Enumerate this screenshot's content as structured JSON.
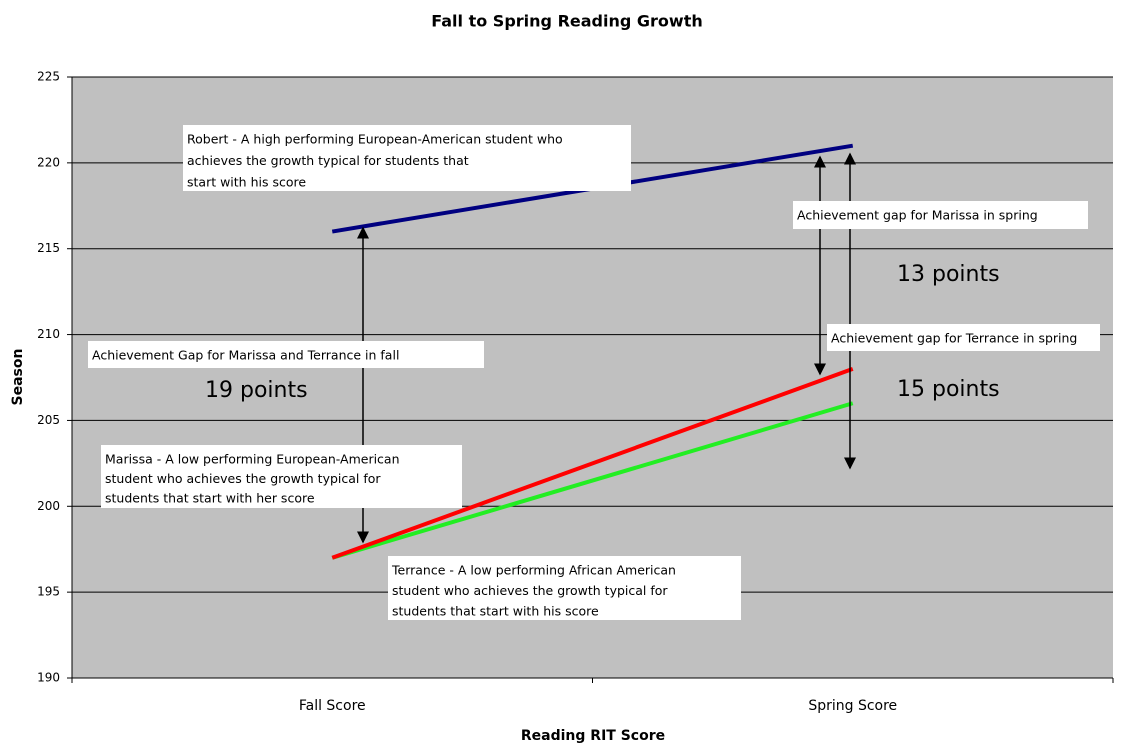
{
  "chart_data": {
    "type": "line",
    "title": "Fall to Spring Reading Growth",
    "x_label": "Reading RIT Score",
    "y_label": "Season",
    "categories": [
      "Fall Score",
      "Spring Score"
    ],
    "series": [
      {
        "color": "#000080",
        "values": [
          216,
          221
        ]
      },
      {
        "color": "#22ee22",
        "values": [
          197,
          206
        ]
      },
      {
        "color": "#ff0000",
        "values": [
          197,
          208
        ]
      }
    ],
    "ylim": [
      190,
      225
    ],
    "yticks": [
      190,
      195,
      200,
      205,
      210,
      215,
      220,
      225
    ],
    "grid": true,
    "annotations": [
      [
        "Robert - A high performing European-American student who",
        "achieves the growth typical for students that",
        "start with his score"
      ],
      [
        "Achievement Gap for Marissa and Terrance in fall"
      ],
      [
        "19 points"
      ],
      [
        "Marissa - A low performing European-American",
        "student who achieves the growth typical for",
        "students that start with her score"
      ],
      [
        "Terrance - A low performing African American",
        "student who achieves the growth typical for",
        "students that start with his score"
      ],
      [
        "Achievement gap for Marissa in spring"
      ],
      [
        "13 points"
      ],
      [
        "Achievement gap for Terrance in spring"
      ],
      [
        "15 points"
      ]
    ]
  }
}
